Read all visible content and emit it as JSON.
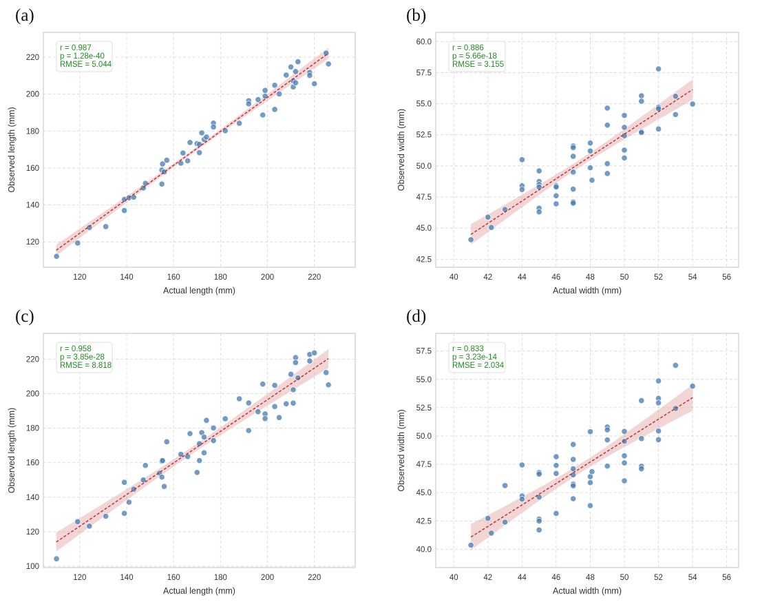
{
  "style": {
    "point_color": "#4a7fb5",
    "fit_line_color": "#c0282b",
    "band_color": "#e3a3a3",
    "grid_color": "#d9d9d9",
    "frame_color": "#cccccc",
    "annotation_color": "#1e8a1e"
  },
  "chart_data": [
    {
      "panel": "(a)",
      "type": "scatter",
      "xlabel": "Actual length (mm)",
      "ylabel": "Observed length (mm)",
      "xlim": [
        104.5,
        237.4
      ],
      "ylim": [
        106.3,
        233.4
      ],
      "xticks": [
        "120",
        "140",
        "160",
        "180",
        "200",
        "220"
      ],
      "yticks": [
        "120",
        "140",
        "160",
        "180",
        "200",
        "220"
      ],
      "grid": true,
      "annotation": [
        "r = 0.987",
        "p = 1.28e-40",
        "RMSE = 5.044"
      ],
      "fit_line": {
        "x": [
          110,
          226
        ],
        "y": [
          115.5,
          222.1
        ],
        "style": "dashed"
      },
      "confidence_band": {
        "halfwidth_ends": 3.0,
        "halfwidth_center": 1.0
      },
      "points": [
        [
          110.1,
          112.2
        ],
        [
          119.1,
          119.4
        ],
        [
          124.1,
          127.8
        ],
        [
          131.1,
          128.3
        ],
        [
          139,
          143
        ],
        [
          139,
          137
        ],
        [
          141,
          143.9
        ],
        [
          143,
          144.2
        ],
        [
          147.1,
          149.2
        ],
        [
          148,
          151.7
        ],
        [
          155,
          151.3
        ],
        [
          155.3,
          162.2
        ],
        [
          155,
          158.9
        ],
        [
          156,
          157.9
        ],
        [
          157.1,
          164.2
        ],
        [
          163.1,
          162.6
        ],
        [
          164,
          168.1
        ],
        [
          166,
          163.9
        ],
        [
          167,
          173.8
        ],
        [
          170,
          173.2
        ],
        [
          171,
          172.8
        ],
        [
          171,
          168.3
        ],
        [
          172,
          179
        ],
        [
          173,
          175.5
        ],
        [
          174,
          176.8
        ],
        [
          177,
          184.3
        ],
        [
          177,
          182.2
        ],
        [
          182,
          180.2
        ],
        [
          188,
          184.2
        ],
        [
          192,
          196.4
        ],
        [
          192,
          194.7
        ],
        [
          196,
          197
        ],
        [
          198,
          188.7
        ],
        [
          199,
          202
        ],
        [
          199,
          198.9
        ],
        [
          203.1,
          204.8
        ],
        [
          203.1,
          191.7
        ],
        [
          205,
          200.1
        ],
        [
          208,
          210.3
        ],
        [
          210,
          214.7
        ],
        [
          211,
          207.2
        ],
        [
          211,
          203.9
        ],
        [
          212,
          212.2
        ],
        [
          212,
          206.1
        ],
        [
          213,
          217.5
        ],
        [
          218,
          211.7
        ],
        [
          218,
          210.1
        ],
        [
          220,
          205.6
        ],
        [
          225,
          222.2
        ],
        [
          226,
          216.3
        ]
      ]
    },
    {
      "panel": "(b)",
      "type": "scatter",
      "xlabel": "Actual width (mm)",
      "ylabel": "Observed width (mm)",
      "xlim": [
        38.94,
        56.7
      ],
      "ylim": [
        41.85,
        60.74
      ],
      "xticks": [
        "40",
        "42",
        "44",
        "46",
        "48",
        "50",
        "52",
        "54",
        "56"
      ],
      "yticks": [
        "42.5",
        "45.0",
        "47.5",
        "50.0",
        "52.5",
        "55.0",
        "57.5",
        "60.0"
      ],
      "grid": true,
      "annotation": [
        "r = 0.886",
        "p = 5.66e-18",
        "RMSE = 3.155"
      ],
      "fit_line": {
        "x": [
          41,
          54
        ],
        "y": [
          44.49,
          56.14
        ],
        "style": "dashed"
      },
      "confidence_band": {
        "halfwidth_ends": 0.82,
        "halfwidth_center": 0.3
      },
      "points": [
        [
          41,
          44.07
        ],
        [
          42,
          45.88
        ],
        [
          42.2,
          45.05
        ],
        [
          43,
          46.5
        ],
        [
          44,
          50.5
        ],
        [
          44,
          48.4
        ],
        [
          44,
          48.1
        ],
        [
          45,
          49.6
        ],
        [
          45,
          48.75
        ],
        [
          45,
          48.5
        ],
        [
          45,
          48.3
        ],
        [
          45,
          46.6
        ],
        [
          45,
          46.3
        ],
        [
          46,
          48.4
        ],
        [
          46,
          48.3
        ],
        [
          46,
          47.6
        ],
        [
          46,
          46.95
        ],
        [
          47,
          51.6
        ],
        [
          47,
          51.47
        ],
        [
          47,
          50.77
        ],
        [
          47,
          49.5
        ],
        [
          47,
          48.13
        ],
        [
          47,
          47.1
        ],
        [
          47,
          47.0
        ],
        [
          48,
          51.84
        ],
        [
          48,
          51.2
        ],
        [
          48,
          49.85
        ],
        [
          48.1,
          48.85
        ],
        [
          49,
          54.65
        ],
        [
          49,
          53.28
        ],
        [
          49,
          50.18
        ],
        [
          49,
          49.39
        ],
        [
          50,
          54.06
        ],
        [
          50,
          53.1
        ],
        [
          50,
          52.43
        ],
        [
          50,
          51.27
        ],
        [
          50,
          50.64
        ],
        [
          51,
          55.64
        ],
        [
          51,
          55.2
        ],
        [
          51,
          52.76
        ],
        [
          51,
          52.69
        ],
        [
          52,
          57.8
        ],
        [
          52,
          54.72
        ],
        [
          52,
          54.6
        ],
        [
          52,
          52.97
        ],
        [
          53,
          55.6
        ],
        [
          53,
          54.13
        ],
        [
          54,
          54.98
        ]
      ]
    },
    {
      "panel": "(c)",
      "type": "scatter",
      "xlabel": "Actual length (mm)",
      "ylabel": "Observed length (mm)",
      "xlim": [
        104.5,
        237.4
      ],
      "ylim": [
        99.2,
        234.9
      ],
      "xticks": [
        "120",
        "140",
        "160",
        "180",
        "200",
        "220"
      ],
      "yticks": [
        "100",
        "120",
        "140",
        "160",
        "180",
        "200",
        "220"
      ],
      "grid": true,
      "annotation": [
        "r = 0.958",
        "p = 3.85e-28",
        "RMSE = 8.818"
      ],
      "fit_line": {
        "x": [
          110,
          226
        ],
        "y": [
          114.0,
          220.3
        ],
        "style": "dashed"
      },
      "confidence_band": {
        "halfwidth_ends": 5.5,
        "halfwidth_center": 2.0
      },
      "points": [
        [
          110.1,
          104.3
        ],
        [
          119.1,
          125.8
        ],
        [
          124.1,
          123.2
        ],
        [
          131.1,
          128.9
        ],
        [
          139,
          148.6
        ],
        [
          139,
          130.6
        ],
        [
          141,
          137.1
        ],
        [
          143,
          144.6
        ],
        [
          147.1,
          150
        ],
        [
          148,
          158.4
        ],
        [
          154,
          153.9
        ],
        [
          155,
          151.6
        ],
        [
          155,
          160.8
        ],
        [
          155.3,
          161.2
        ],
        [
          156,
          146.2
        ],
        [
          157.1,
          172.1
        ],
        [
          163.1,
          164.8
        ],
        [
          166,
          163.5
        ],
        [
          167,
          176.8
        ],
        [
          170,
          154.3
        ],
        [
          171,
          171
        ],
        [
          171,
          161.2
        ],
        [
          172,
          177.4
        ],
        [
          173,
          174.8
        ],
        [
          173,
          165.7
        ],
        [
          174,
          184.5
        ],
        [
          177,
          180.1
        ],
        [
          177,
          172.8
        ],
        [
          182,
          185.4
        ],
        [
          188,
          197
        ],
        [
          192,
          194.6
        ],
        [
          192,
          178.6
        ],
        [
          196,
          189.5
        ],
        [
          198,
          205.5
        ],
        [
          199,
          188.2
        ],
        [
          199,
          185.5
        ],
        [
          203.1,
          204.8
        ],
        [
          203.1,
          192.5
        ],
        [
          205,
          186.1
        ],
        [
          208,
          194.1
        ],
        [
          210,
          211.2
        ],
        [
          211,
          202.2
        ],
        [
          211,
          194.5
        ],
        [
          212,
          220.9
        ],
        [
          212,
          218
        ],
        [
          213,
          209.1
        ],
        [
          218,
          222.7
        ],
        [
          218,
          218.9
        ],
        [
          220,
          223.6
        ],
        [
          225,
          212.2
        ],
        [
          226,
          205.1
        ]
      ]
    },
    {
      "panel": "(d)",
      "type": "scatter",
      "xlabel": "Actual width (mm)",
      "ylabel": "Observed width (mm)",
      "xlim": [
        38.94,
        56.7
      ],
      "ylim": [
        38.38,
        59.06
      ],
      "xticks": [
        "40",
        "42",
        "44",
        "46",
        "48",
        "50",
        "52",
        "54",
        "56"
      ],
      "yticks": [
        "40.0",
        "42.5",
        "45.0",
        "47.5",
        "50.0",
        "52.5",
        "55.0",
        "57.5"
      ],
      "grid": true,
      "annotation": [
        "r = 0.833",
        "p = 3.23e-14",
        "RMSE = 2.034"
      ],
      "fit_line": {
        "x": [
          41,
          54
        ],
        "y": [
          41.07,
          53.38
        ],
        "style": "dashed"
      },
      "confidence_band": {
        "halfwidth_ends": 1.15,
        "halfwidth_center": 0.4
      },
      "points": [
        [
          41,
          40.36
        ],
        [
          42,
          42.72
        ],
        [
          42.2,
          41.42
        ],
        [
          43,
          45.62
        ],
        [
          43,
          42.39
        ],
        [
          44,
          47.44
        ],
        [
          44,
          44.7
        ],
        [
          44,
          44.42
        ],
        [
          45,
          46.77
        ],
        [
          45,
          46.63
        ],
        [
          45,
          44.6
        ],
        [
          45,
          42.66
        ],
        [
          45,
          42.49
        ],
        [
          45,
          41.7
        ],
        [
          46,
          48.17
        ],
        [
          46,
          47.4
        ],
        [
          46,
          46.69
        ],
        [
          46,
          43.16
        ],
        [
          47,
          49.25
        ],
        [
          47,
          47.93
        ],
        [
          47,
          47.1
        ],
        [
          47,
          46.57
        ],
        [
          47,
          45.74
        ],
        [
          47,
          45.6
        ],
        [
          47,
          44.46
        ],
        [
          48,
          50.38
        ],
        [
          48,
          46.41
        ],
        [
          48,
          45.88
        ],
        [
          48,
          43.85
        ],
        [
          48.1,
          46.85
        ],
        [
          49,
          50.79
        ],
        [
          49,
          50.54
        ],
        [
          49,
          49.65
        ],
        [
          49,
          47.34
        ],
        [
          50,
          50.4
        ],
        [
          50,
          49.53
        ],
        [
          50,
          48.25
        ],
        [
          50,
          47.62
        ],
        [
          50,
          46.04
        ],
        [
          51,
          53.12
        ],
        [
          51,
          49.77
        ],
        [
          51,
          47.32
        ],
        [
          51,
          47.1
        ],
        [
          52,
          54.86
        ],
        [
          52,
          53.32
        ],
        [
          52,
          52.92
        ],
        [
          52,
          50.44
        ],
        [
          52,
          49.67
        ],
        [
          53,
          56.24
        ],
        [
          53,
          52.43
        ],
        [
          54,
          54.4
        ]
      ]
    }
  ]
}
